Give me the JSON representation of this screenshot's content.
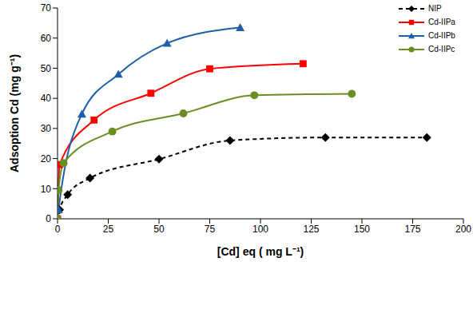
{
  "chart_data": {
    "type": "line",
    "x_label": "[Cd] eq ( mg L⁻¹)",
    "y_label": "Adsoption Cd (mg g⁻¹)",
    "xlim": [
      0,
      200
    ],
    "xticks": [
      0,
      25,
      50,
      75,
      100,
      125,
      150,
      175,
      200
    ],
    "ylim": [
      0,
      70
    ],
    "yticks": [
      0,
      10,
      20,
      30,
      40,
      50,
      60,
      70
    ],
    "grid": false,
    "legend": "upper right",
    "series": [
      {
        "name": "NIP",
        "color": "#000000",
        "marker": "diamond",
        "line_style": "dashed",
        "x": [
          0,
          1,
          5,
          16,
          50,
          85,
          132,
          182
        ],
        "values": [
          0,
          3,
          8,
          13.5,
          19.8,
          26,
          27,
          27
        ]
      },
      {
        "name": "Cd-IIPa",
        "color": "#ff0000",
        "marker": "square",
        "line_style": "solid",
        "x": [
          0,
          1,
          18,
          46,
          75,
          121
        ],
        "values": [
          0,
          18,
          32.8,
          41.7,
          49.8,
          51.5
        ]
      },
      {
        "name": "Cd-IIPb",
        "color": "#1f5fa8",
        "marker": "triangle",
        "line_style": "solid",
        "x": [
          0,
          0.5,
          12,
          30,
          54,
          90
        ],
        "values": [
          0,
          3,
          34.8,
          48,
          58.3,
          63.5
        ]
      },
      {
        "name": "Cd-IIPc",
        "color": "#6b8e23",
        "marker": "circle",
        "line_style": "solid",
        "x": [
          0,
          0.5,
          3,
          27,
          62,
          97,
          145
        ],
        "values": [
          0,
          9.5,
          18.5,
          29,
          35,
          41,
          41.5
        ]
      }
    ]
  }
}
